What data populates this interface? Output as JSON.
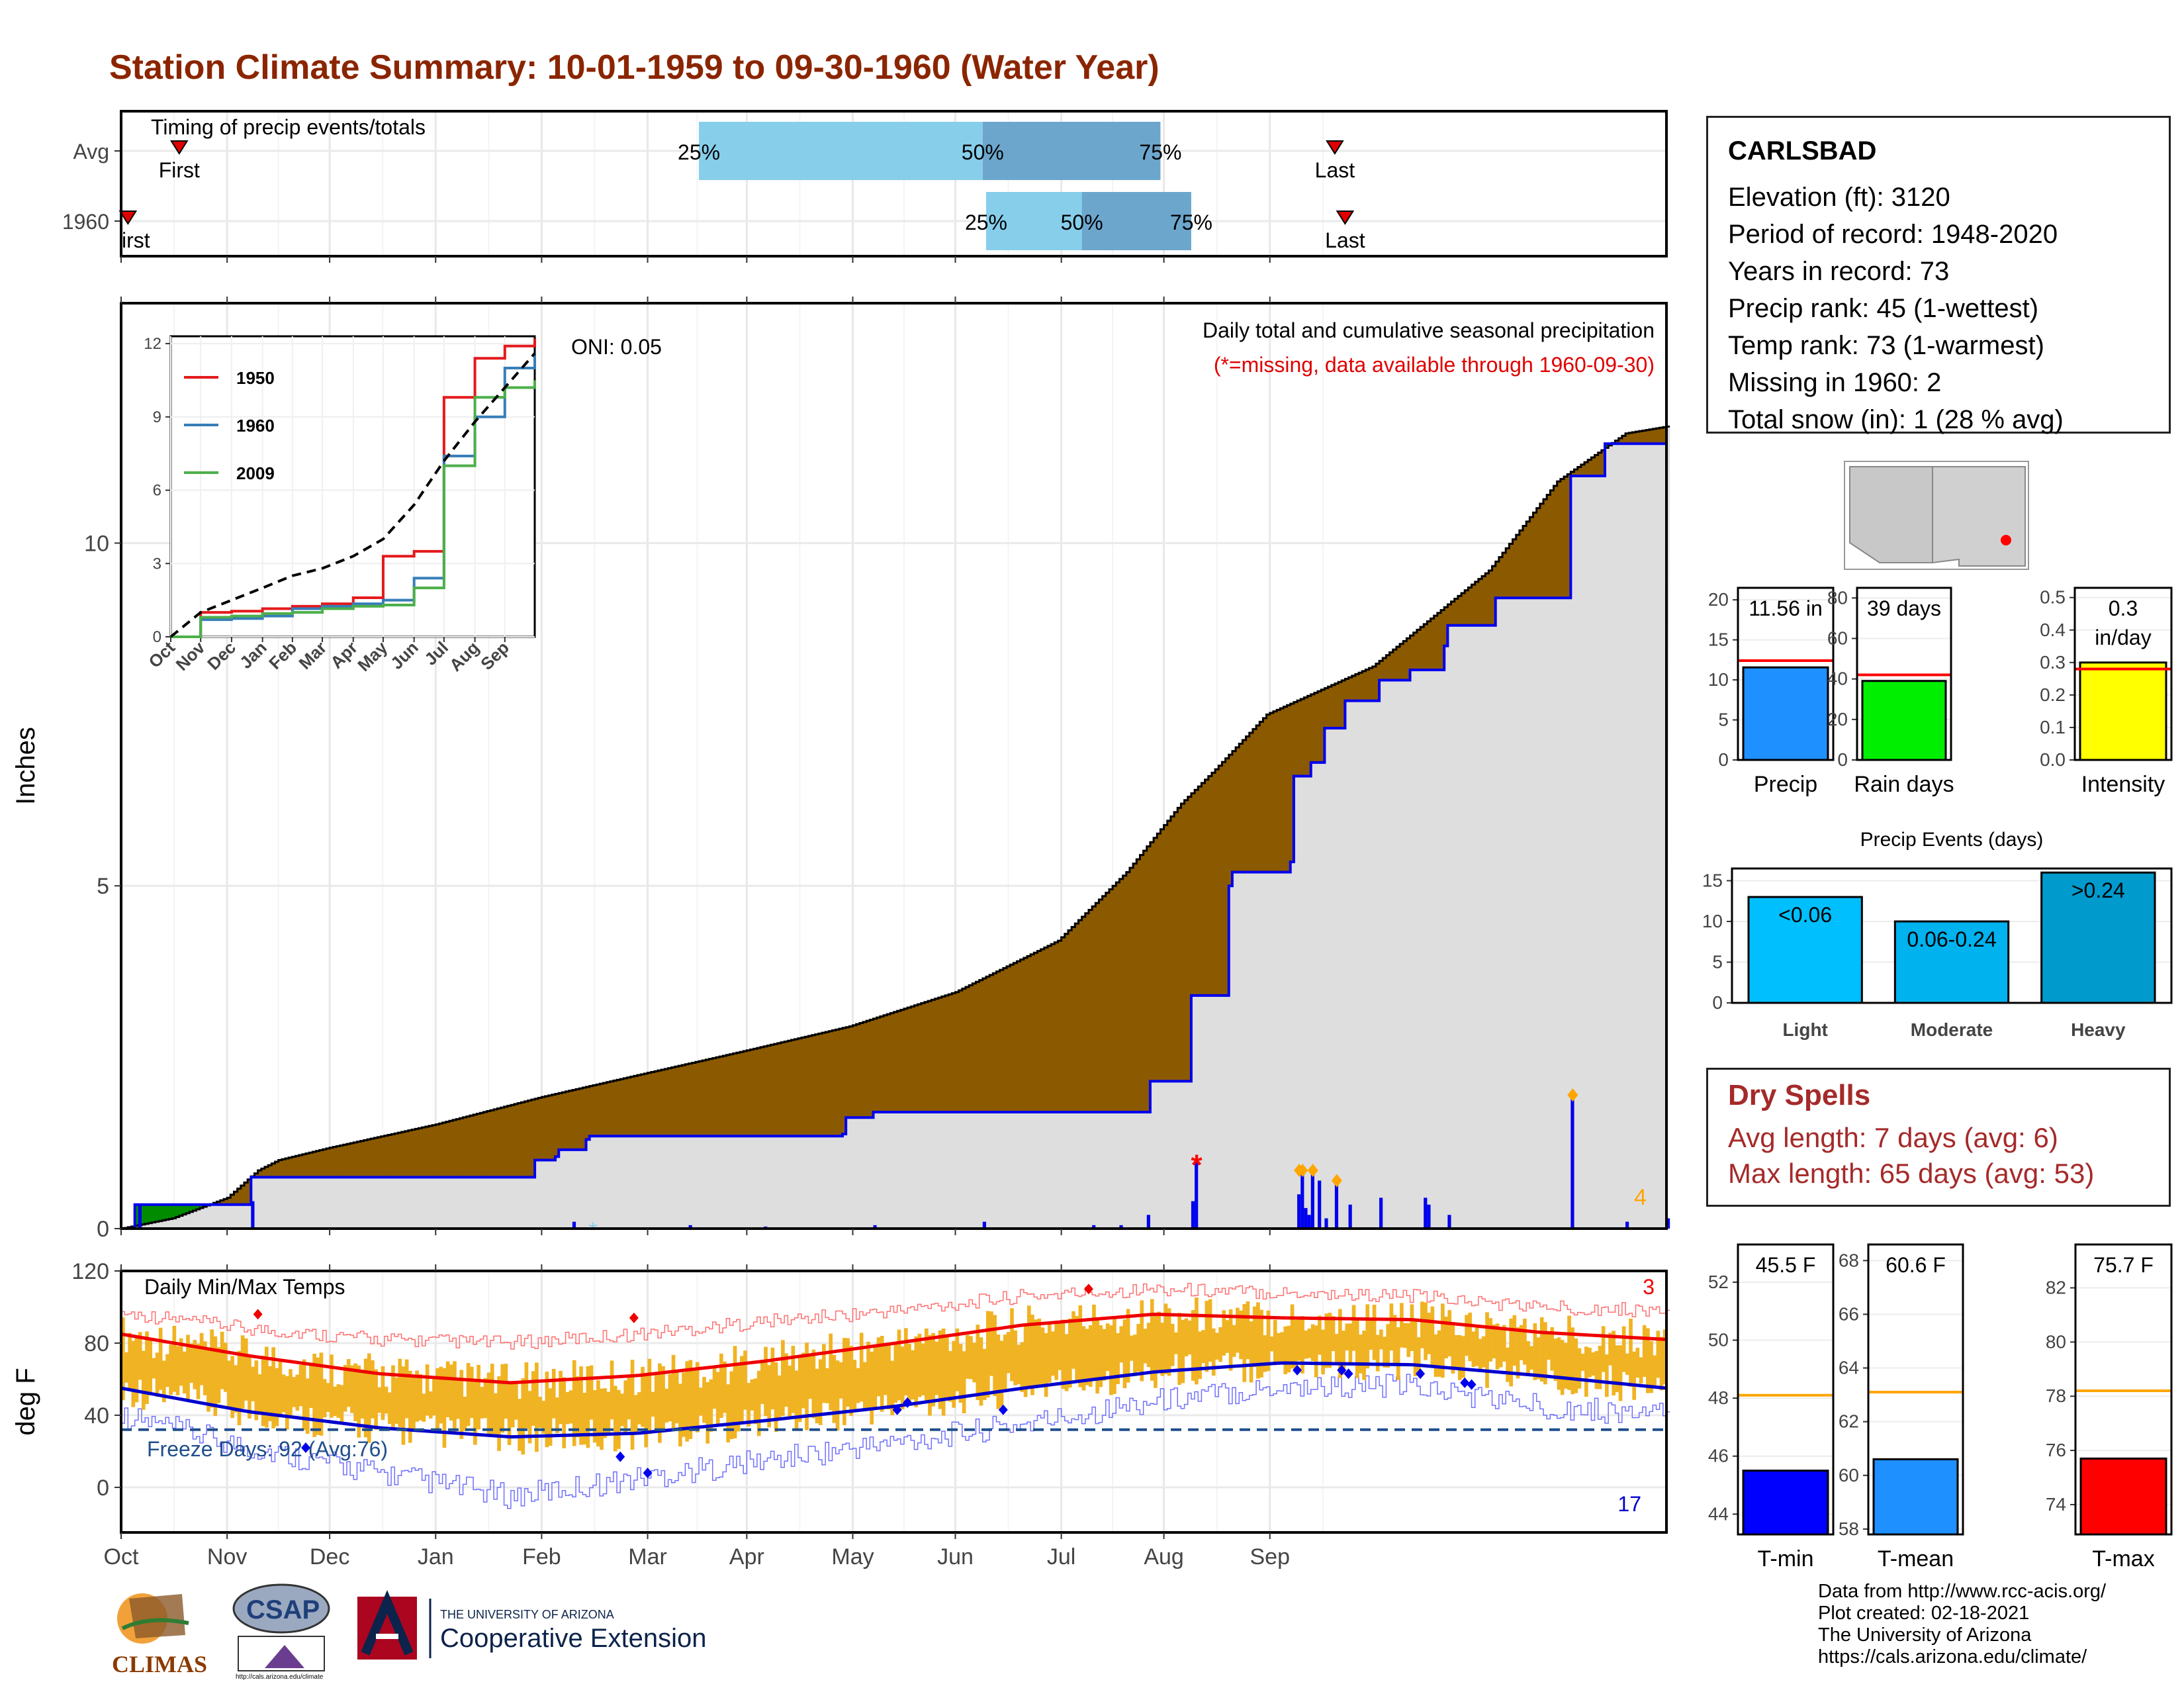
{
  "title": "Station Climate Summary: 10-01-1959 to 09-30-1960 (Water Year)",
  "station": {
    "name": "CARLSBAD",
    "lines": [
      "Elevation (ft): 3120",
      "Period of record: 1948-2020",
      "Years in record: 73",
      "Precip rank: 45 (1-wettest)",
      "Temp rank: 73 (1-warmest)",
      "Missing in 1960: 2",
      "Total snow (in): 1 (28 % avg)"
    ]
  },
  "dry_spells": {
    "title": "Dry Spells",
    "avg_length": "Avg length: 7 days (avg: 6)",
    "max_length": "Max length: 65 days (avg: 53)"
  },
  "credits": [
    "Data from http://www.rcc-acis.org/",
    "Plot created: 02-18-2021",
    "The University of Arizona",
    "https://cals.arizona.edu/climate/"
  ],
  "logos": {
    "climas": "CLIMAS",
    "csap": "CSAP",
    "csap_url": "http://cals.arizona.edu/climate",
    "ua_line1": "THE UNIVERSITY OF ARIZONA",
    "ua_line2": "Cooperative Extension"
  },
  "colors": {
    "title": "#8b2500",
    "light_blue": "#87ceeb",
    "steel_blue": "#6ca6cd",
    "brown_deficit": "#8b5a00",
    "green_surplus": "#008b00",
    "precip_bar": "#1e90ff",
    "rain_days_bar": "#00ee00",
    "intensity_bar": "#ffff00",
    "events_light": "#00bfff",
    "events_moderate": "#00b2ee",
    "events_heavy": "#009acd",
    "tmin_bar": "#0000ff",
    "tmean_bar": "#1e90ff",
    "tmax_bar": "#ff0000",
    "temp_range": "#f0b323"
  },
  "chart_data": [
    {
      "id": "timing",
      "type": "bar",
      "title": "Timing of precip events/totals",
      "rows": [
        "Avg",
        "1960"
      ],
      "avg": {
        "p25": "2000-03-18",
        "p50": "2000-06-09",
        "p75": "2000-07-31",
        "first": "1999-10-18",
        "last": "2000-09-20"
      },
      "y1960": {
        "p25": "2000-06-10",
        "p50": "2000-07-08",
        "p75": "2000-08-09",
        "first": "1999-10-03",
        "last": "2000-09-23"
      },
      "labels": {
        "p25": "25%",
        "p50": "50%",
        "p75": "75%",
        "first": "First",
        "last": "Last",
        "first_1960": "irst"
      }
    },
    {
      "id": "precip",
      "type": "area",
      "title": "Daily total and cumulative seasonal precipitation",
      "subtitle": "(*=missing, data available through 1960-09-30)",
      "oni": "ONI: 0.05",
      "ylabel": "Inches",
      "ylim": [
        0,
        13.5
      ],
      "yticks": [
        0,
        5,
        10
      ],
      "corner_count": "4",
      "avg_cumulative": [
        [
          0,
          0.0
        ],
        [
          15,
          0.15
        ],
        [
          31,
          0.45
        ],
        [
          40,
          0.85
        ],
        [
          46,
          1.0
        ],
        [
          61,
          1.18
        ],
        [
          92,
          1.52
        ],
        [
          123,
          1.92
        ],
        [
          152,
          2.25
        ],
        [
          183,
          2.6
        ],
        [
          213,
          2.95
        ],
        [
          244,
          3.45
        ],
        [
          274,
          4.2
        ],
        [
          294,
          5.2
        ],
        [
          310,
          6.2
        ],
        [
          320,
          6.7
        ],
        [
          335,
          7.5
        ],
        [
          366,
          8.2
        ],
        [
          400,
          9.6
        ],
        [
          420,
          10.9
        ],
        [
          440,
          11.6
        ],
        [
          452,
          11.7
        ]
      ],
      "cumulative_1960": [
        [
          0,
          0.0
        ],
        [
          4,
          0.35
        ],
        [
          37,
          0.35
        ],
        [
          38,
          0.75
        ],
        [
          120,
          0.75
        ],
        [
          121,
          1.0
        ],
        [
          127,
          1.05
        ],
        [
          128,
          1.15
        ],
        [
          135,
          1.15
        ],
        [
          136,
          1.3
        ],
        [
          137,
          1.35
        ],
        [
          211,
          1.38
        ],
        [
          212,
          1.62
        ],
        [
          219,
          1.62
        ],
        [
          220,
          1.7
        ],
        [
          300,
          1.7
        ],
        [
          301,
          2.15
        ],
        [
          312,
          2.15
        ],
        [
          313,
          3.4
        ],
        [
          323,
          3.4
        ],
        [
          324,
          5.0
        ],
        [
          325,
          5.2
        ],
        [
          342,
          5.35
        ],
        [
          343,
          6.6
        ],
        [
          348,
          6.8
        ],
        [
          352,
          7.3
        ],
        [
          358,
          7.7
        ],
        [
          368,
          8.0
        ],
        [
          377,
          8.15
        ],
        [
          386,
          8.15
        ],
        [
          387,
          8.5
        ],
        [
          388,
          8.8
        ],
        [
          401,
          8.8
        ],
        [
          402,
          9.2
        ],
        [
          423,
          9.2
        ],
        [
          424,
          10.98
        ],
        [
          433,
          10.98
        ],
        [
          434,
          11.45
        ],
        [
          452,
          11.56
        ]
      ],
      "daily_1960": [
        [
          5,
          0.35
        ],
        [
          38,
          0.4
        ],
        [
          132,
          0.1
        ],
        [
          166,
          0.05
        ],
        [
          188,
          0.03
        ],
        [
          220,
          0.05
        ],
        [
          252,
          0.1
        ],
        [
          284,
          0.05
        ],
        [
          292,
          0.05
        ],
        [
          300,
          0.2
        ],
        [
          313,
          0.4
        ],
        [
          314,
          1.0
        ],
        [
          344,
          0.5
        ],
        [
          345,
          0.85
        ],
        [
          346,
          0.3
        ],
        [
          347,
          0.2
        ],
        [
          348,
          0.8
        ],
        [
          350,
          0.7
        ],
        [
          352,
          0.15
        ],
        [
          355,
          0.65
        ],
        [
          359,
          0.35
        ],
        [
          368,
          0.45
        ],
        [
          381,
          0.45
        ],
        [
          382,
          0.35
        ],
        [
          388,
          0.2
        ],
        [
          424,
          1.9
        ],
        [
          440,
          0.1
        ],
        [
          452,
          0.15
        ]
      ],
      "oni_inset": {
        "series": [
          {
            "name": "1950",
            "color": "#e41a1c"
          },
          {
            "name": "1960",
            "color": "#377eb8"
          },
          {
            "name": "2009",
            "color": "#4daf4a"
          }
        ],
        "xticks": [
          "Oct",
          "Nov",
          "Dec",
          "Jan",
          "Feb",
          "Mar",
          "Apr",
          "May",
          "Jun",
          "Jul",
          "Aug",
          "Sep"
        ],
        "yticks": [
          0,
          3,
          6,
          9,
          12
        ],
        "ylim": [
          0,
          12.3
        ],
        "x": [
          0,
          30,
          61,
          92,
          122,
          152,
          183,
          213,
          244,
          274,
          305,
          335,
          365
        ],
        "1950": [
          0,
          1.0,
          1.05,
          1.15,
          1.25,
          1.35,
          1.6,
          3.3,
          3.5,
          9.8,
          11.4,
          11.9,
          12.2
        ],
        "1960": [
          0,
          0.7,
          0.75,
          0.85,
          1.15,
          1.25,
          1.35,
          1.5,
          2.4,
          7.4,
          9.0,
          11.0,
          11.6
        ],
        "2009": [
          0,
          0.8,
          0.85,
          0.95,
          1.0,
          1.15,
          1.25,
          1.3,
          2.0,
          7.0,
          9.8,
          10.2,
          10.5
        ],
        "avg": [
          0,
          1.0,
          1.5,
          2.0,
          2.5,
          2.8,
          3.3,
          4.0,
          5.4,
          7.2,
          8.8,
          10.2,
          11.6
        ]
      }
    },
    {
      "id": "temps",
      "type": "line",
      "title": "Daily Min/Max Temps",
      "ylabel": "deg F",
      "ylim": [
        -25,
        120
      ],
      "yticks": [
        0,
        40,
        80,
        120
      ],
      "freeze_label": "Freeze Days: 92 (Avg:76)",
      "freeze_line": 32,
      "count_top": "3",
      "count_bottom": "17",
      "xticks": [
        "Oct",
        "Nov",
        "Dec",
        "Jan",
        "Feb",
        "Mar",
        "Apr",
        "May",
        "Jun",
        "Jul",
        "Aug",
        "Sep"
      ],
      "normal_max": [
        [
          0,
          85
        ],
        [
          30,
          73
        ],
        [
          61,
          63
        ],
        [
          92,
          58
        ],
        [
          122,
          62
        ],
        [
          152,
          70
        ],
        [
          183,
          80
        ],
        [
          213,
          90
        ],
        [
          244,
          96
        ],
        [
          274,
          94
        ],
        [
          305,
          93
        ],
        [
          335,
          86
        ],
        [
          365,
          82
        ]
      ],
      "normal_min": [
        [
          0,
          55
        ],
        [
          30,
          42
        ],
        [
          61,
          33
        ],
        [
          92,
          28
        ],
        [
          122,
          30
        ],
        [
          152,
          37
        ],
        [
          183,
          45
        ],
        [
          213,
          55
        ],
        [
          244,
          64
        ],
        [
          274,
          69
        ],
        [
          305,
          68
        ],
        [
          335,
          62
        ],
        [
          365,
          55
        ]
      ],
      "record_max": [
        [
          0,
          97
        ],
        [
          30,
          88
        ],
        [
          61,
          82
        ],
        [
          92,
          80
        ],
        [
          122,
          85
        ],
        [
          152,
          92
        ],
        [
          183,
          98
        ],
        [
          213,
          106
        ],
        [
          244,
          110
        ],
        [
          274,
          108
        ],
        [
          305,
          106
        ],
        [
          335,
          100
        ],
        [
          365,
          98
        ]
      ],
      "record_min": [
        [
          0,
          40
        ],
        [
          30,
          22
        ],
        [
          61,
          8
        ],
        [
          92,
          -5
        ],
        [
          122,
          5
        ],
        [
          152,
          15
        ],
        [
          183,
          25
        ],
        [
          213,
          35
        ],
        [
          244,
          48
        ],
        [
          274,
          56
        ],
        [
          305,
          56
        ],
        [
          335,
          45
        ],
        [
          365,
          40
        ]
      ]
    },
    {
      "id": "precip-bars",
      "type": "bar",
      "categories": [
        "Precip",
        "Rain days",
        "Intensity"
      ],
      "values": [
        11.56,
        39,
        0.3
      ],
      "averages": [
        12.4,
        42,
        0.28
      ],
      "labels": [
        "11.56 in",
        "39 days",
        "0.3",
        "in/day"
      ],
      "yticks": [
        [
          0,
          5,
          10,
          15,
          20
        ],
        [
          0,
          20,
          40,
          60,
          80
        ],
        [
          "0.0",
          "0.1",
          "0.2",
          "0.3",
          "0.4",
          "0.5"
        ]
      ],
      "ylim": [
        [
          0,
          21.5
        ],
        [
          0,
          85
        ],
        [
          0,
          0.53
        ]
      ]
    },
    {
      "id": "events",
      "type": "bar",
      "title": "Precip Events (days)",
      "categories": [
        "Light",
        "Moderate",
        "Heavy"
      ],
      "values": [
        13,
        10,
        16
      ],
      "bar_labels": [
        "<0.06",
        "0.06-0.24",
        ">0.24"
      ],
      "yticks": [
        0,
        5,
        10,
        15
      ],
      "ylim": [
        0,
        16.5
      ]
    },
    {
      "id": "temp-bars",
      "type": "bar",
      "categories": [
        "T-min",
        "T-mean",
        "T-max"
      ],
      "values": [
        45.5,
        60.6,
        75.7
      ],
      "averages": [
        48.1,
        63.1,
        78.2
      ],
      "labels": [
        "45.5 F",
        "60.6 F",
        "75.7 F"
      ],
      "yticks": [
        [
          44,
          46,
          48,
          50,
          52
        ],
        [
          58,
          60,
          62,
          64,
          66,
          68
        ],
        [
          74,
          76,
          78,
          80,
          82
        ]
      ],
      "ylim": [
        [
          43.3,
          53.3
        ],
        [
          57.8,
          68.6
        ],
        [
          72.9,
          83.6
        ]
      ]
    }
  ]
}
